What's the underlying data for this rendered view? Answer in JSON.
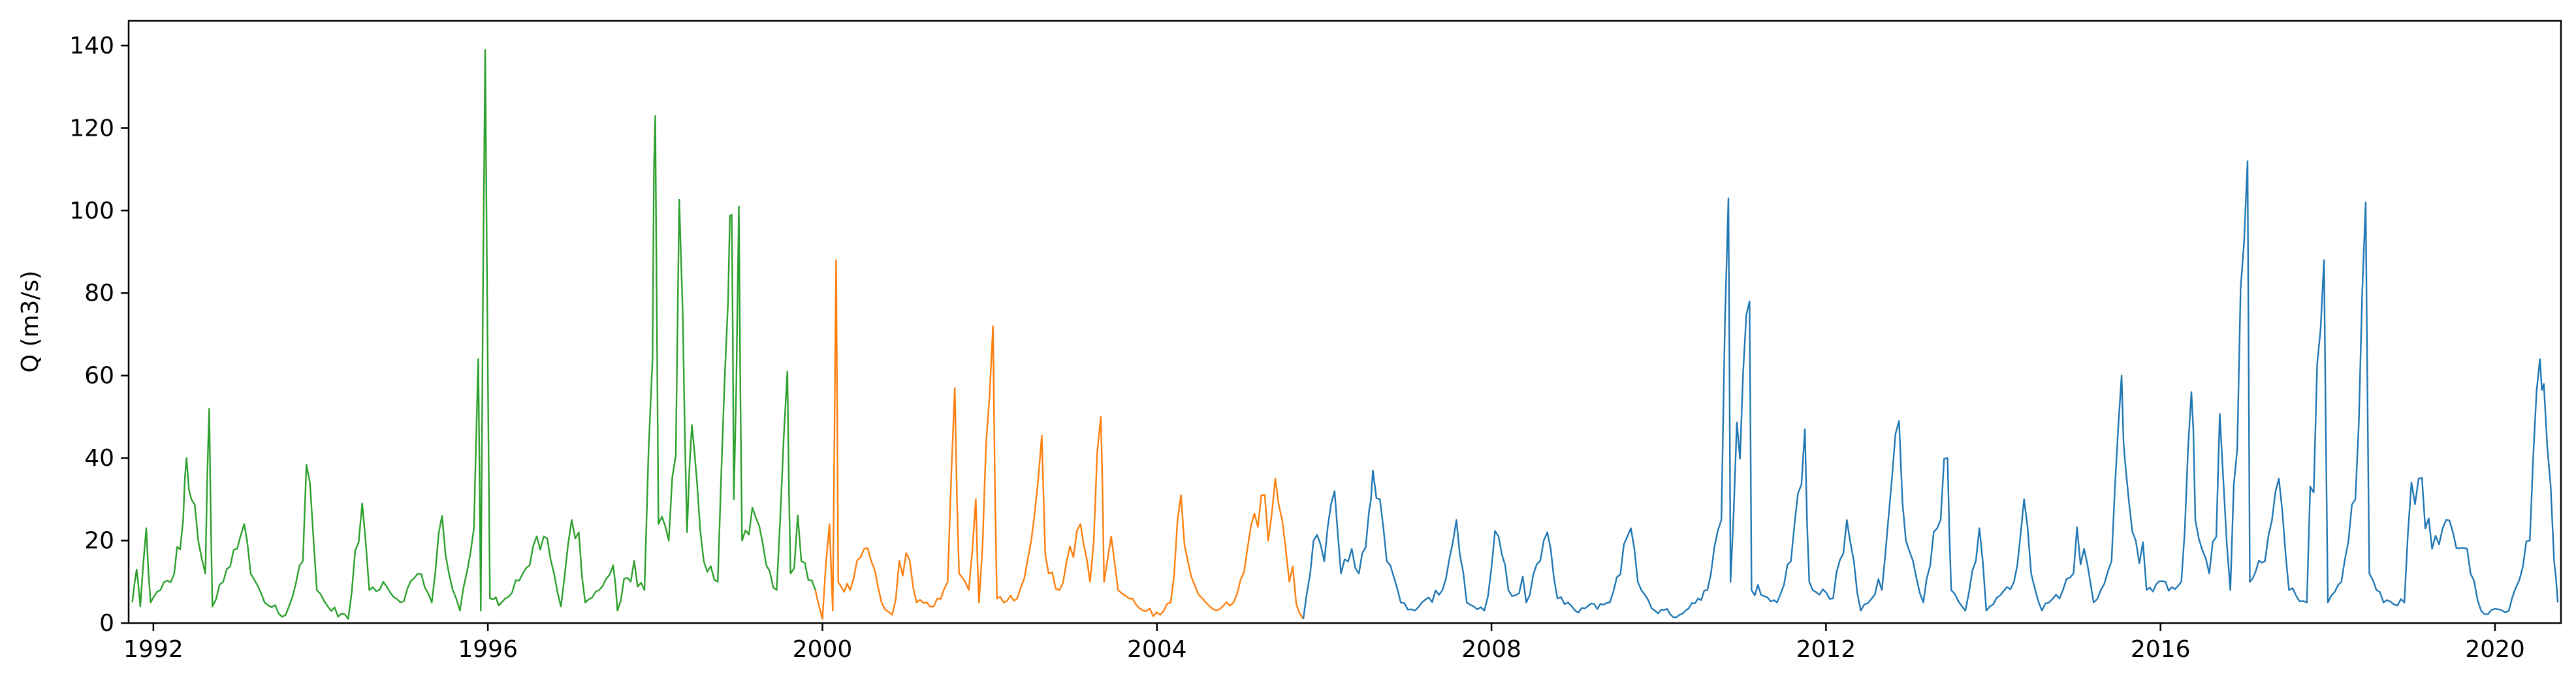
{
  "chart_data": {
    "type": "line",
    "title": "",
    "xlabel": "",
    "ylabel": "Q (m3/s)",
    "ylim": [
      0,
      146
    ],
    "xlim": [
      "1991-09-15",
      "2020-10-15"
    ],
    "y_ticks": [
      0,
      20,
      40,
      60,
      80,
      100,
      120,
      140
    ],
    "x_ticks": [
      "1992",
      "1996",
      "2000",
      "2004",
      "2008",
      "2012",
      "2016",
      "2020"
    ],
    "grid": false,
    "legend": "none",
    "series": [
      {
        "color": "#2ca02c",
        "points": [
          [
            "1991-10-01",
            5
          ],
          [
            "1991-10-20",
            13
          ],
          [
            "1991-11-05",
            4
          ],
          [
            "1991-12-01",
            23
          ],
          [
            "1991-12-20",
            5
          ],
          [
            "1992-02-01",
            8
          ],
          [
            "1992-04-01",
            12
          ],
          [
            "1992-05-10",
            25
          ],
          [
            "1992-05-25",
            40
          ],
          [
            "1992-06-15",
            30
          ],
          [
            "1992-07-15",
            20
          ],
          [
            "1992-08-15",
            12
          ],
          [
            "1992-09-01",
            52
          ],
          [
            "1992-09-15",
            4
          ],
          [
            "1992-11-01",
            10
          ],
          [
            "1993-01-01",
            18
          ],
          [
            "1993-02-01",
            24
          ],
          [
            "1993-03-01",
            12
          ],
          [
            "1993-05-01",
            5
          ],
          [
            "1993-08-01",
            2
          ],
          [
            "1993-10-15",
            15
          ],
          [
            "1993-11-15",
            34
          ],
          [
            "1993-12-15",
            8
          ],
          [
            "1994-02-01",
            4
          ],
          [
            "1994-05-01",
            1
          ],
          [
            "1994-07-01",
            29
          ],
          [
            "1994-08-01",
            8
          ],
          [
            "1994-10-01",
            10
          ],
          [
            "1994-12-15",
            5
          ],
          [
            "1995-03-01",
            12
          ],
          [
            "1995-05-01",
            5
          ],
          [
            "1995-06-15",
            26
          ],
          [
            "1995-07-15",
            12
          ],
          [
            "1995-09-01",
            3
          ],
          [
            "1995-11-01",
            23
          ],
          [
            "1995-11-20",
            64
          ],
          [
            "1995-12-01",
            3
          ],
          [
            "1995-12-20",
            139
          ],
          [
            "1996-01-10",
            6
          ],
          [
            "1996-03-01",
            5
          ],
          [
            "1996-06-01",
            12
          ],
          [
            "1996-09-01",
            21
          ],
          [
            "1996-11-15",
            4
          ],
          [
            "1997-01-01",
            25
          ],
          [
            "1997-02-01",
            22
          ],
          [
            "1997-03-01",
            5
          ],
          [
            "1997-05-01",
            8
          ],
          [
            "1997-07-01",
            14
          ],
          [
            "1997-07-20",
            3
          ],
          [
            "1997-09-01",
            11
          ],
          [
            "1997-11-15",
            8
          ],
          [
            "1997-12-20",
            64
          ],
          [
            "1998-01-01",
            123
          ],
          [
            "1998-01-15",
            24
          ],
          [
            "1998-03-01",
            20
          ],
          [
            "1998-05-01",
            75
          ],
          [
            "1998-05-20",
            22
          ],
          [
            "1998-06-10",
            48
          ],
          [
            "1998-07-01",
            35
          ],
          [
            "1998-08-01",
            15
          ],
          [
            "1998-10-01",
            10
          ],
          [
            "1998-11-15",
            78
          ],
          [
            "1998-12-01",
            99
          ],
          [
            "1998-12-10",
            30
          ],
          [
            "1999-01-01",
            101
          ],
          [
            "1999-01-15",
            20
          ],
          [
            "1999-03-01",
            28
          ],
          [
            "1999-05-01",
            14
          ],
          [
            "1999-06-15",
            8
          ],
          [
            "1999-08-01",
            61
          ],
          [
            "1999-08-15",
            12
          ],
          [
            "1999-10-01",
            15
          ],
          [
            "1999-12-01",
            8
          ]
        ]
      },
      {
        "color": "#ff7f0e",
        "points": [
          [
            "1999-12-01",
            8
          ],
          [
            "2000-01-01",
            1
          ],
          [
            "2000-02-01",
            24
          ],
          [
            "2000-02-15",
            3
          ],
          [
            "2000-03-01",
            88
          ],
          [
            "2000-03-10",
            10
          ],
          [
            "2000-05-01",
            8
          ],
          [
            "2000-07-01",
            18
          ],
          [
            "2000-08-01",
            15
          ],
          [
            "2000-09-15",
            5
          ],
          [
            "2000-11-01",
            2
          ],
          [
            "2001-01-01",
            17
          ],
          [
            "2001-02-15",
            5
          ],
          [
            "2001-05-01",
            4
          ],
          [
            "2001-07-01",
            10
          ],
          [
            "2001-08-01",
            57
          ],
          [
            "2001-08-20",
            12
          ],
          [
            "2001-10-01",
            8
          ],
          [
            "2001-11-01",
            30
          ],
          [
            "2001-11-15",
            5
          ],
          [
            "2002-01-15",
            72
          ],
          [
            "2002-02-01",
            6
          ],
          [
            "2002-05-01",
            6
          ],
          [
            "2002-07-01",
            20
          ],
          [
            "2002-08-01",
            35
          ],
          [
            "2002-09-15",
            12
          ],
          [
            "2002-11-01",
            8
          ],
          [
            "2003-02-01",
            24
          ],
          [
            "2003-03-15",
            10
          ],
          [
            "2003-05-01",
            50
          ],
          [
            "2003-05-15",
            10
          ],
          [
            "2003-06-15",
            21
          ],
          [
            "2003-07-15",
            8
          ],
          [
            "2003-09-01",
            6
          ],
          [
            "2003-11-01",
            3
          ],
          [
            "2004-01-15",
            2
          ],
          [
            "2004-03-01",
            5
          ],
          [
            "2004-04-15",
            31
          ],
          [
            "2004-05-15",
            15
          ],
          [
            "2004-06-15",
            9
          ],
          [
            "2004-08-01",
            5
          ],
          [
            "2004-09-15",
            3
          ],
          [
            "2004-12-01",
            5
          ],
          [
            "2005-04-01",
            31
          ],
          [
            "2005-05-01",
            20
          ],
          [
            "2005-06-01",
            35
          ],
          [
            "2005-07-01",
            25
          ],
          [
            "2005-08-01",
            10
          ],
          [
            "2005-10-01",
            1
          ]
        ]
      },
      {
        "color": "#1f77b4",
        "points": [
          [
            "2005-10-01",
            1
          ],
          [
            "2005-11-15",
            20
          ],
          [
            "2006-01-01",
            15
          ],
          [
            "2006-02-15",
            32
          ],
          [
            "2006-03-15",
            12
          ],
          [
            "2006-05-01",
            18
          ],
          [
            "2006-06-01",
            12
          ],
          [
            "2006-07-15",
            27
          ],
          [
            "2006-08-01",
            37
          ],
          [
            "2006-09-01",
            30
          ],
          [
            "2006-10-01",
            15
          ],
          [
            "2006-12-01",
            5
          ],
          [
            "2007-02-01",
            3
          ],
          [
            "2007-06-01",
            8
          ],
          [
            "2007-08-01",
            25
          ],
          [
            "2007-09-15",
            5
          ],
          [
            "2007-12-01",
            3
          ],
          [
            "2008-02-01",
            21
          ],
          [
            "2008-03-15",
            8
          ],
          [
            "2008-06-01",
            5
          ],
          [
            "2008-09-01",
            22
          ],
          [
            "2008-10-15",
            6
          ],
          [
            "2009-01-01",
            3
          ],
          [
            "2009-06-01",
            5
          ],
          [
            "2009-09-01",
            23
          ],
          [
            "2009-10-01",
            10
          ],
          [
            "2009-12-15",
            3
          ],
          [
            "2010-04-01",
            2
          ],
          [
            "2010-08-01",
            8
          ],
          [
            "2010-10-01",
            25
          ],
          [
            "2010-11-01",
            103
          ],
          [
            "2010-11-10",
            10
          ],
          [
            "2011-02-01",
            78
          ],
          [
            "2011-02-10",
            8
          ],
          [
            "2011-06-01",
            5
          ],
          [
            "2011-08-01",
            15
          ],
          [
            "2011-10-01",
            47
          ],
          [
            "2011-10-20",
            10
          ],
          [
            "2012-02-01",
            6
          ],
          [
            "2012-04-01",
            25
          ],
          [
            "2012-06-01",
            3
          ],
          [
            "2012-09-01",
            8
          ],
          [
            "2012-10-15",
            35
          ],
          [
            "2012-11-15",
            49
          ],
          [
            "2012-12-15",
            20
          ],
          [
            "2013-03-01",
            5
          ],
          [
            "2013-06-15",
            40
          ],
          [
            "2013-07-01",
            8
          ],
          [
            "2013-09-01",
            3
          ],
          [
            "2013-11-01",
            23
          ],
          [
            "2013-12-01",
            3
          ],
          [
            "2014-04-01",
            10
          ],
          [
            "2014-05-15",
            30
          ],
          [
            "2014-06-15",
            12
          ],
          [
            "2014-08-01",
            3
          ],
          [
            "2014-11-01",
            8
          ],
          [
            "2015-02-01",
            18
          ],
          [
            "2015-03-15",
            5
          ],
          [
            "2015-06-01",
            15
          ],
          [
            "2015-07-15",
            60
          ],
          [
            "2015-08-01",
            38
          ],
          [
            "2015-09-15",
            20
          ],
          [
            "2015-11-01",
            8
          ],
          [
            "2016-04-01",
            10
          ],
          [
            "2016-05-15",
            56
          ],
          [
            "2016-06-01",
            25
          ],
          [
            "2016-08-01",
            12
          ],
          [
            "2016-10-01",
            35
          ],
          [
            "2016-11-01",
            8
          ],
          [
            "2017-01-15",
            112
          ],
          [
            "2017-01-25",
            10
          ],
          [
            "2017-04-01",
            15
          ],
          [
            "2017-06-01",
            35
          ],
          [
            "2017-07-15",
            8
          ],
          [
            "2017-10-01",
            5
          ],
          [
            "2017-12-15",
            88
          ],
          [
            "2018-01-01",
            5
          ],
          [
            "2018-03-01",
            10
          ],
          [
            "2018-05-01",
            30
          ],
          [
            "2018-06-15",
            102
          ],
          [
            "2018-07-01",
            12
          ],
          [
            "2018-09-01",
            5
          ],
          [
            "2018-12-01",
            5
          ],
          [
            "2019-02-01",
            35
          ],
          [
            "2019-04-01",
            18
          ],
          [
            "2019-06-01",
            25
          ],
          [
            "2019-07-01",
            22
          ],
          [
            "2019-09-01",
            18
          ],
          [
            "2019-11-01",
            3
          ],
          [
            "2020-03-01",
            3
          ],
          [
            "2020-06-01",
            20
          ],
          [
            "2020-07-15",
            64
          ],
          [
            "2020-08-01",
            58
          ],
          [
            "2020-09-15",
            15
          ],
          [
            "2020-10-01",
            5
          ]
        ]
      }
    ]
  }
}
